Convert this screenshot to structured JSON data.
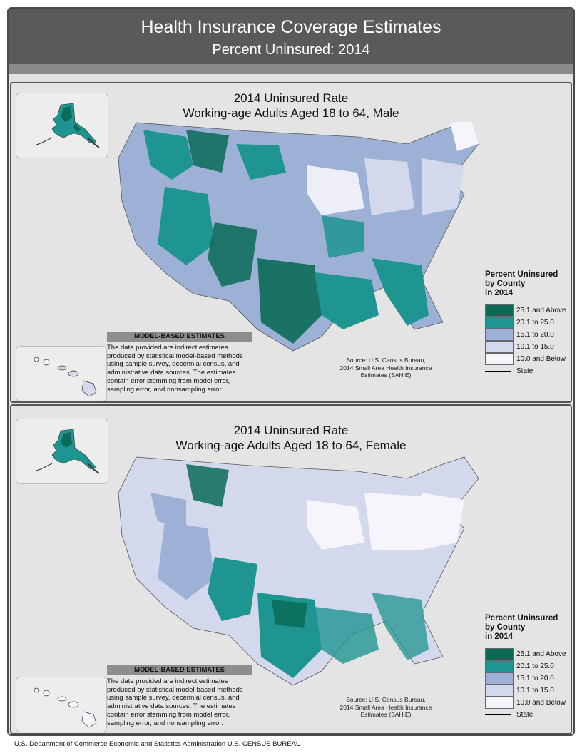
{
  "header": {
    "title": "Health Insurance Coverage Estimates",
    "subtitle": "Percent Uninsured: 2014"
  },
  "colors": {
    "c25": "#0b6b57",
    "c20": "#1f9591",
    "c15": "#9db1d7",
    "c10": "#d3d8ec",
    "c0": "#f6f5fb"
  },
  "maps": [
    {
      "title_line1": "2014 Uninsured Rate",
      "title_line2": "Working-age Adults Aged 18 to 64, Male"
    },
    {
      "title_line1": "2014 Uninsured Rate",
      "title_line2": "Working-age Adults Aged 18 to 64, Female"
    }
  ],
  "legend": {
    "title_line1": "Percent Uninsured",
    "title_line2": "by County",
    "title_line3": "in 2014",
    "items": [
      {
        "label": "25.1 and Above",
        "color": "#0b6b57"
      },
      {
        "label": "20.1 to 25.0",
        "color": "#1f9591"
      },
      {
        "label": "15.1 to 20.0",
        "color": "#9db1d7"
      },
      {
        "label": "10.1 to 15.0",
        "color": "#d3d8ec"
      },
      {
        "label": "10.0 and Below",
        "color": "#f6f5fb"
      }
    ],
    "state_label": "State"
  },
  "model_based": {
    "heading": "MODEL-BASED ESTIMATES",
    "text": "The data provided are indirect estimates produced by statistical model-based methods using sample survey, decennial census, and administrative data sources. The estimates contain error stemming from model error, sampling error, and nonsampling error."
  },
  "source": {
    "line1": "Source: U.S. Census Bureau,",
    "line2": "2014 Small Area Health Insurance",
    "line3": "Estimates (SAHIE)"
  },
  "footer": {
    "text": "U.S. Department of Commerce  Economic and Statistics Administration  U.S. CENSUS BUREAU"
  }
}
